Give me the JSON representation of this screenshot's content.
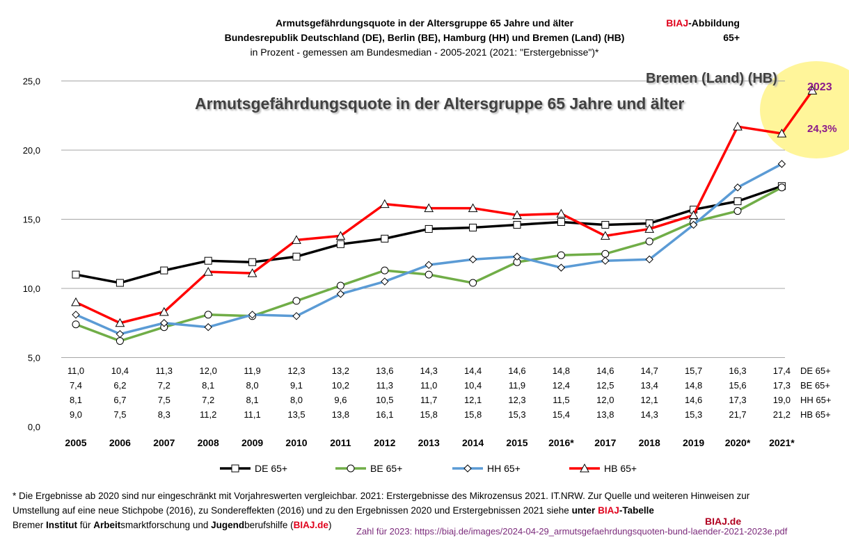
{
  "header": {
    "title_line1": "Armutsgefährdungsquote in der Altersgruppe 65 Jahre und älter",
    "title_line2": "Bundesrepublik Deutschland (DE), Berlin (BE), Hamburg (HH) und Bremen (Land) (HB)",
    "subtitle": "in Prozent - gemessen am Bundesmedian - 2005-2021 (2021: \"Erstergebnisse\")*",
    "badge_red": "BIAJ",
    "badge_rest": "-Abbildung",
    "badge_line2": "65+"
  },
  "overlay": {
    "chart_title": "Armutsgefährdungsquote in der Altersgruppe 65 Jahre und älter",
    "region_label": "Bremen (Land) (HB)",
    "highlight_year": "2023",
    "highlight_value": "24,3%"
  },
  "footer": {
    "line1": "* Die Ergebnisse ab 2020 sind nur eingeschränkt mit Vorjahreswerten vergleichbar. 2021: Erstergebnisse des Mikrozensus 2021. IT.NRW.  Zur Quelle und weiteren Hinweisen zur",
    "line2_a": "Umstellung auf eine neue Stichpobe (2016), zu Sondereffekten (2016) und zu den Ergebnissen 2020 und Erstergebnissen 2021 siehe ",
    "line2_b": "unter ",
    "line2_c": "BIAJ",
    "line2_d": "-Tabelle",
    "line3_a": "Bremer ",
    "line3_b": "Institut",
    "line3_c": " für ",
    "line3_d": "Arbeit",
    "line3_e": "smarktforschung und ",
    "line3_f": "Jugend",
    "line3_g": "berufshilfe (",
    "line3_h": "BIAJ.de",
    "line3_i": ")",
    "biaj_de": "BIAJ.de",
    "url": "Zahl für 2023: https://biaj.de/images/2024-04-29_armutsgefaehrdungsquoten-bund-laender-2021-2023e.pdf"
  },
  "colors": {
    "DE": "#000000",
    "BE": "#70ad47",
    "HH": "#5b9bd5",
    "HB": "#ff0000",
    "grid": "#a6a6a6",
    "highlight": "#fff59a",
    "accent_red": "#e0001b"
  },
  "chart_data": {
    "type": "line",
    "categories": [
      "2005",
      "2006",
      "2007",
      "2008",
      "2009",
      "2010",
      "2011",
      "2012",
      "2013",
      "2014",
      "2015",
      "2016*",
      "2017",
      "2018",
      "2019",
      "2020*",
      "2021*"
    ],
    "ylim": [
      0,
      25
    ],
    "yticks": [
      "0,0",
      "5,0",
      "10,0",
      "15,0",
      "20,0",
      "25,0"
    ],
    "grid": true,
    "legend_position": "bottom",
    "series": [
      {
        "name": "DE 65+",
        "key": "DE",
        "marker": "square",
        "values": [
          11.0,
          10.4,
          11.3,
          12.0,
          11.9,
          12.3,
          13.2,
          13.6,
          14.3,
          14.4,
          14.6,
          14.8,
          14.6,
          14.7,
          15.7,
          16.3,
          17.4
        ],
        "labels": [
          "11,0",
          "10,4",
          "11,3",
          "12,0",
          "11,9",
          "12,3",
          "13,2",
          "13,6",
          "14,3",
          "14,4",
          "14,6",
          "14,8",
          "14,6",
          "14,7",
          "15,7",
          "16,3",
          "17,4"
        ]
      },
      {
        "name": "BE 65+",
        "key": "BE",
        "marker": "circle",
        "values": [
          7.4,
          6.2,
          7.2,
          8.1,
          8.0,
          9.1,
          10.2,
          11.3,
          11.0,
          10.4,
          11.9,
          12.4,
          12.5,
          13.4,
          14.8,
          15.6,
          17.3
        ],
        "labels": [
          "7,4",
          "6,2",
          "7,2",
          "8,1",
          "8,0",
          "9,1",
          "10,2",
          "11,3",
          "11,0",
          "10,4",
          "11,9",
          "12,4",
          "12,5",
          "13,4",
          "14,8",
          "15,6",
          "17,3"
        ]
      },
      {
        "name": "HH 65+",
        "key": "HH",
        "marker": "diamond",
        "values": [
          8.1,
          6.7,
          7.5,
          7.2,
          8.1,
          8.0,
          9.6,
          10.5,
          11.7,
          12.1,
          12.3,
          11.5,
          12.0,
          12.1,
          14.6,
          17.3,
          19.0
        ],
        "labels": [
          "8,1",
          "6,7",
          "7,5",
          "7,2",
          "8,1",
          "8,0",
          "9,6",
          "10,5",
          "11,7",
          "12,1",
          "12,3",
          "11,5",
          "12,0",
          "12,1",
          "14,6",
          "17,3",
          "19,0"
        ]
      },
      {
        "name": "HB 65+",
        "key": "HB",
        "marker": "triangle",
        "values": [
          9.0,
          7.5,
          8.3,
          11.2,
          11.1,
          13.5,
          13.8,
          16.1,
          15.8,
          15.8,
          15.3,
          15.4,
          13.8,
          14.3,
          15.3,
          21.7,
          21.2
        ],
        "labels": [
          "9,0",
          "7,5",
          "8,3",
          "11,2",
          "11,1",
          "13,5",
          "13,8",
          "16,1",
          "15,8",
          "15,8",
          "15,3",
          "15,4",
          "13,8",
          "14,3",
          "15,3",
          "21,7",
          "21,2"
        ],
        "extension": {
          "x": "2023",
          "value": 24.3
        }
      }
    ]
  }
}
